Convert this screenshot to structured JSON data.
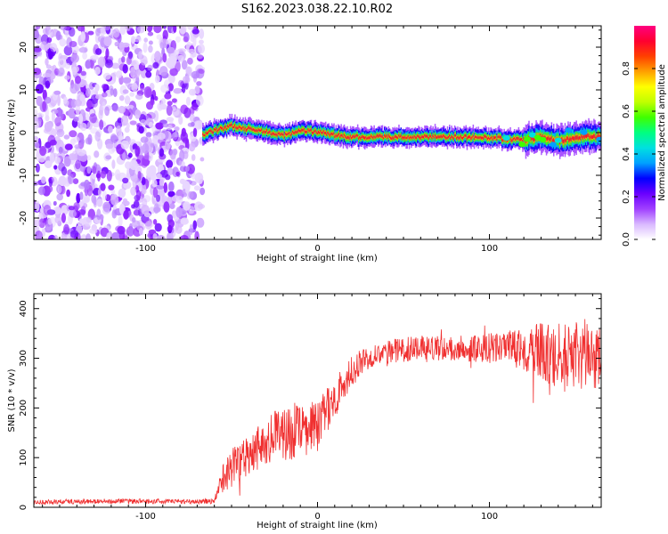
{
  "figure_title": "S162.2023.038.22.10.R02",
  "chart_data": [
    {
      "type": "heatmap",
      "title": "S162.2023.038.22.10.R02",
      "xlabel": "Height of straight line (km)",
      "ylabel": "Frequency (Hz)",
      "xlim": [
        -165,
        165
      ],
      "ylim": [
        -25,
        25
      ],
      "x_ticks": [
        -100,
        0,
        100
      ],
      "y_ticks": [
        -20,
        -10,
        0,
        10,
        20
      ],
      "grid": false,
      "colorbar": {
        "label": "Normalized spectral amplitude",
        "range": [
          0.0,
          1.0
        ],
        "ticks": [
          "0.0",
          "0.2",
          "0.4",
          "0.6",
          "0.8"
        ],
        "colormap": [
          "#ffffff",
          "#d9b8ff",
          "#a040ff",
          "#6a00ff",
          "#0000ff",
          "#00a0ff",
          "#00e0e0",
          "#00ff80",
          "#40ff00",
          "#c0ff00",
          "#ffff00",
          "#ffa000",
          "#ff4000",
          "#ff0030",
          "#ff0080"
        ]
      },
      "noise_region": {
        "x_range": [
          -165,
          -67
        ],
        "y_range": [
          -25,
          25
        ]
      },
      "signal_ridge": {
        "x": [
          -67,
          -60,
          -50,
          -40,
          -30,
          -20,
          -10,
          0,
          10,
          20,
          40,
          60,
          80,
          100,
          110,
          120,
          130,
          140,
          150,
          165
        ],
        "y": [
          -0.5,
          0.5,
          1.5,
          0.8,
          0.3,
          -0.8,
          0.5,
          0.2,
          -0.6,
          -1.0,
          -1.0,
          -1.0,
          -1.0,
          -1.2,
          -1.5,
          -1.8,
          -1.0,
          -2.0,
          -1.0,
          -1.0
        ]
      }
    },
    {
      "type": "line",
      "xlabel": "Height of straight line (km)",
      "ylabel": "SNR (10 * v/v)",
      "xlim": [
        -165,
        165
      ],
      "ylim": [
        0,
        430
      ],
      "x_ticks": [
        -100,
        0,
        100
      ],
      "y_ticks": [
        0,
        100,
        200,
        300,
        400
      ],
      "grid": false,
      "color": "#f03030",
      "series": [
        {
          "x": [
            -165,
            -140,
            -110,
            -80,
            -60,
            -55,
            -50,
            -40,
            -30,
            -20,
            -10,
            0,
            10,
            20,
            30,
            40,
            60,
            80,
            100,
            115,
            125,
            135,
            145,
            155,
            165
          ],
          "y": [
            10,
            12,
            12,
            12,
            12,
            60,
            80,
            110,
            135,
            150,
            150,
            165,
            220,
            275,
            305,
            315,
            320,
            320,
            320,
            318,
            315,
            310,
            300,
            310,
            300
          ],
          "noise_amplitude": [
            5,
            5,
            5,
            5,
            5,
            30,
            40,
            45,
            50,
            55,
            55,
            50,
            40,
            30,
            25,
            25,
            25,
            25,
            30,
            40,
            55,
            65,
            70,
            70,
            60
          ]
        }
      ]
    }
  ]
}
